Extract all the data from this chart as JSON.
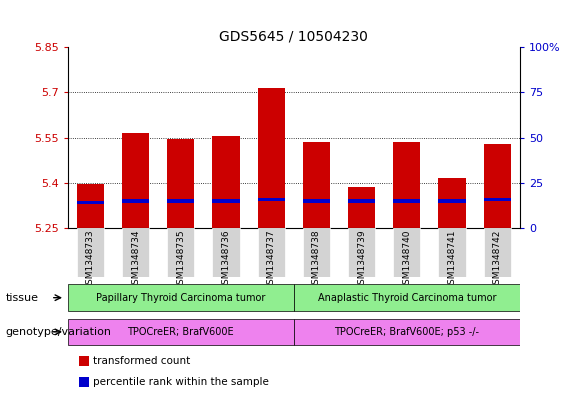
{
  "title": "GDS5645 / 10504230",
  "samples": [
    "GSM1348733",
    "GSM1348734",
    "GSM1348735",
    "GSM1348736",
    "GSM1348737",
    "GSM1348738",
    "GSM1348739",
    "GSM1348740",
    "GSM1348741",
    "GSM1348742"
  ],
  "red_values": [
    5.395,
    5.565,
    5.545,
    5.555,
    5.715,
    5.535,
    5.385,
    5.535,
    5.415,
    5.53
  ],
  "blue_values": [
    5.328,
    5.333,
    5.333,
    5.333,
    5.338,
    5.333,
    5.333,
    5.333,
    5.333,
    5.338
  ],
  "blue_heights": [
    0.013,
    0.013,
    0.013,
    0.013,
    0.013,
    0.013,
    0.013,
    0.013,
    0.013,
    0.013
  ],
  "ymin": 5.25,
  "ymax": 5.85,
  "yticks_left": [
    5.25,
    5.4,
    5.55,
    5.7,
    5.85
  ],
  "yticks_right": [
    0,
    25,
    50,
    75,
    100
  ],
  "bar_width": 0.6,
  "bar_color_red": "#cc0000",
  "bar_color_blue": "#0000cc",
  "bg_color_plot": "#ffffff",
  "bg_color_fig": "#ffffff",
  "tick_label_color_left": "#cc0000",
  "tick_label_color_right": "#0000cc",
  "tissue_groups": [
    {
      "label": "Papillary Thyroid Carcinoma tumor",
      "start": 0,
      "end": 4,
      "color": "#90ee90"
    },
    {
      "label": "Anaplastic Thyroid Carcinoma tumor",
      "start": 5,
      "end": 9,
      "color": "#90ee90"
    }
  ],
  "genotype_groups": [
    {
      "label": "TPOCreER; BrafV600E",
      "start": 0,
      "end": 4,
      "color": "#ee82ee"
    },
    {
      "label": "TPOCreER; BrafV600E; p53 -/-",
      "start": 5,
      "end": 9,
      "color": "#ee82ee"
    }
  ],
  "row_labels": [
    "tissue",
    "genotype/variation"
  ],
  "legend_items": [
    {
      "label": "transformed count",
      "color": "#cc0000"
    },
    {
      "label": "percentile rank within the sample",
      "color": "#0000cc"
    }
  ],
  "xticklabel_bg": "#d3d3d3",
  "bar_bottom": 5.25
}
